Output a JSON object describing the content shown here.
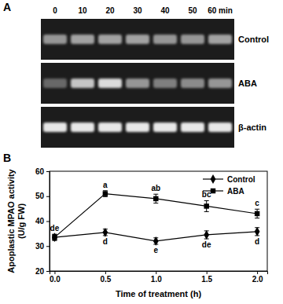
{
  "panel_a": {
    "label": "A",
    "lanes": [
      "0",
      "10",
      "20",
      "30",
      "40",
      "50",
      "60 min"
    ],
    "rows": [
      {
        "name": "Control",
        "intensity": [
          0.55,
          0.6,
          0.6,
          0.6,
          0.55,
          0.55,
          0.6
        ]
      },
      {
        "name": "ABA",
        "intensity": [
          0.35,
          0.75,
          0.85,
          0.55,
          0.45,
          0.5,
          0.55
        ]
      },
      {
        "name": "β-actin",
        "intensity": [
          0.9,
          0.9,
          0.9,
          0.9,
          0.9,
          0.9,
          0.9
        ]
      }
    ]
  },
  "panel_b": {
    "label": "B"
  },
  "chart_data": {
    "type": "line",
    "x_label": "Time of treatment (h)",
    "y_label": "Apoplastic MPAO activity (U/g FW)",
    "xlim": [
      -0.05,
      2.1
    ],
    "xticks": [
      {
        "value": 0,
        "label": "0.0"
      },
      {
        "value": 0.5,
        "label": "0.5"
      },
      {
        "value": 1,
        "label": "1.0"
      },
      {
        "value": 1.5,
        "label": "1.5"
      },
      {
        "value": 2,
        "label": "2.0"
      }
    ],
    "ylim": [
      20,
      60
    ],
    "yticks": [
      20,
      30,
      40,
      50,
      60
    ],
    "legend": "upper right",
    "x": [
      0,
      0.5,
      1,
      1.5,
      2
    ],
    "series": [
      {
        "name": "Control",
        "color": "#000000",
        "marker": "diamond",
        "line_style": "solid",
        "values": [
          33.5,
          35.5,
          32,
          34.5,
          35.8
        ],
        "errors": [
          1.2,
          1.3,
          1.3,
          1.6,
          1.6
        ],
        "point_labels": [
          null,
          "d",
          "e",
          "de",
          "d"
        ]
      },
      {
        "name": "ABA",
        "color": "#000000",
        "marker": "square",
        "line_style": "solid",
        "values": [
          33.5,
          51,
          49,
          46,
          43
        ],
        "errors": [
          1.2,
          1.2,
          1.8,
          2.2,
          1.8
        ],
        "point_labels": [
          "de",
          "a",
          "ab",
          "bc",
          "c"
        ]
      }
    ]
  }
}
